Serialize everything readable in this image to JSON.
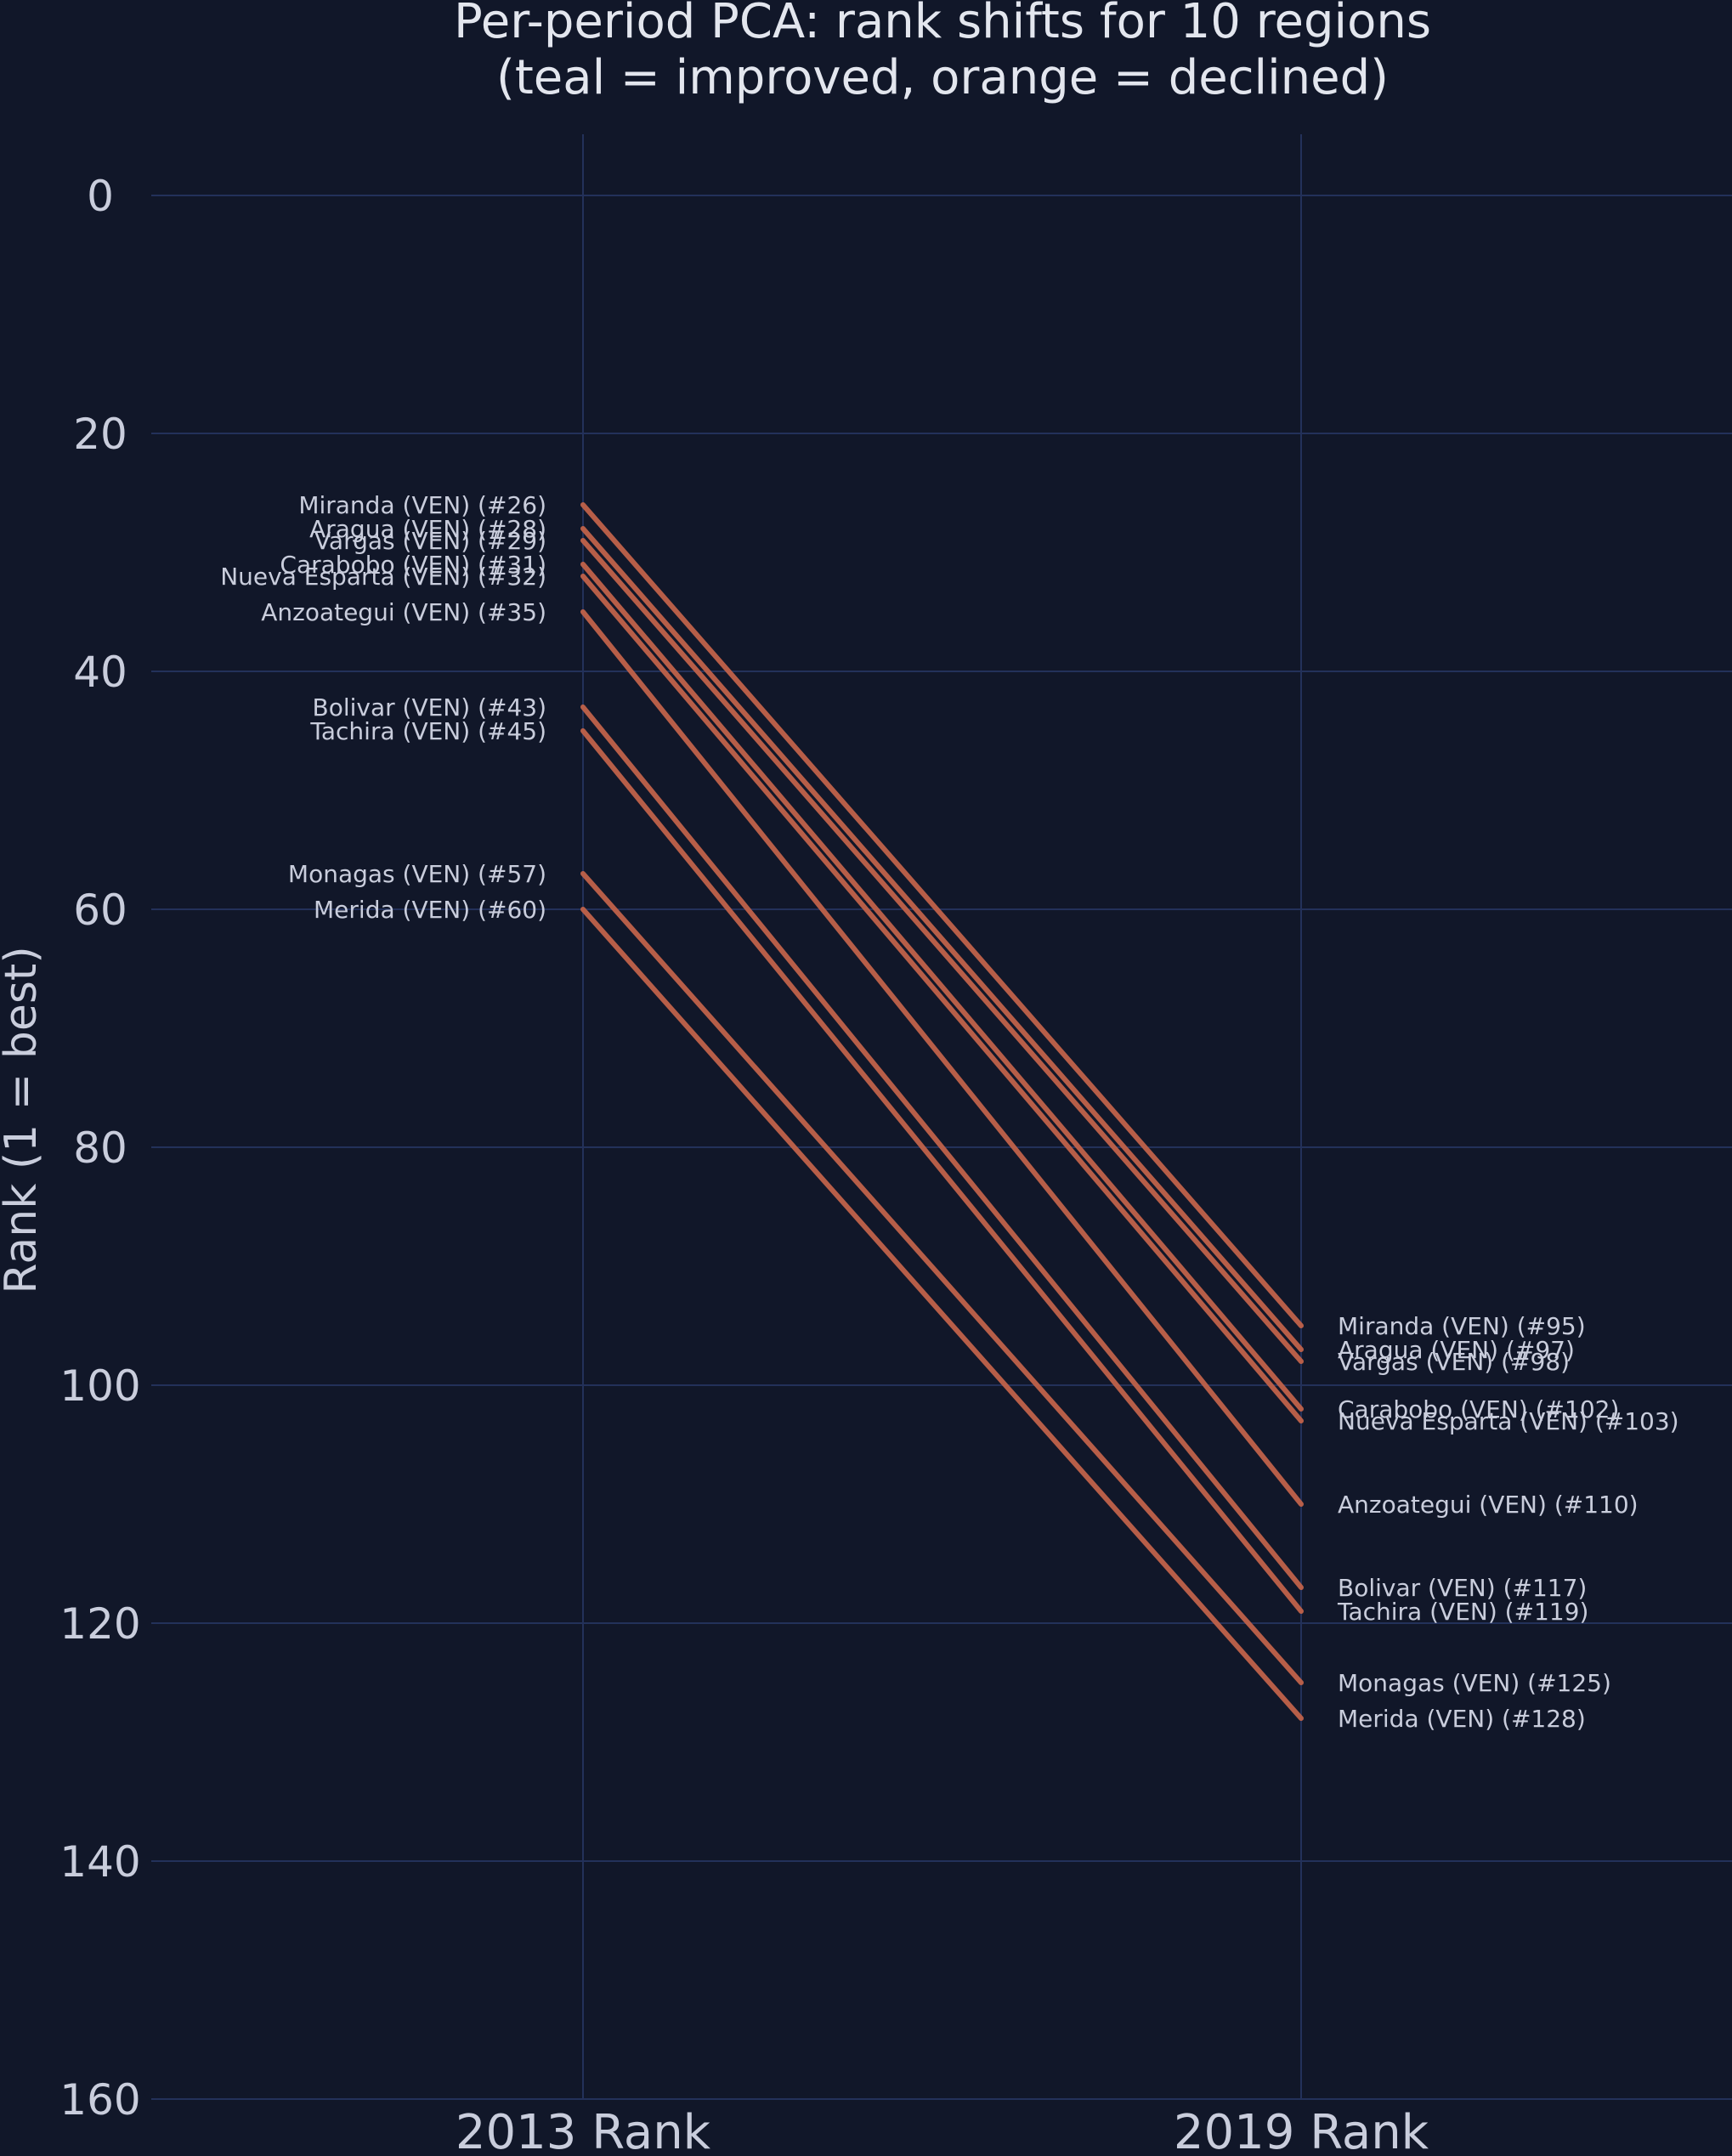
{
  "chart_data": {
    "type": "line",
    "title_lines": [
      "Per-period PCA: rank shifts for 10 regions",
      "(teal = improved, orange = declined)"
    ],
    "xlabel": "",
    "ylabel": "Rank (1 = best)",
    "categories": [
      "2013 Rank",
      "2019 Rank"
    ],
    "ylim": [
      0,
      160
    ],
    "y_inverted": true,
    "yticks": [
      0,
      20,
      40,
      60,
      80,
      100,
      120,
      140,
      160
    ],
    "grid": true,
    "colors": {
      "background": "#111729",
      "grid": "#23315a",
      "improved": "#2bb3a3",
      "declined": "#c0624a",
      "text": "#c9cddc",
      "title": "#e3e6ee"
    },
    "series": [
      {
        "name": "Miranda (VEN)",
        "values": [
          26,
          95
        ],
        "labels": [
          "Miranda (VEN) (#26)",
          "Miranda (VEN) (#95)"
        ]
      },
      {
        "name": "Aragua (VEN)",
        "values": [
          28,
          97
        ],
        "labels": [
          "Aragua (VEN) (#28)",
          "Aragua (VEN) (#97)"
        ]
      },
      {
        "name": "Vargas (VEN)",
        "values": [
          29,
          98
        ],
        "labels": [
          "Vargas (VEN) (#29)",
          "Vargas (VEN) (#98)"
        ]
      },
      {
        "name": "Carabobo (VEN)",
        "values": [
          31,
          102
        ],
        "labels": [
          "Carabobo (VEN) (#31)",
          "Carabobo (VEN) (#102)"
        ]
      },
      {
        "name": "Nueva Esparta (VEN)",
        "values": [
          32,
          103
        ],
        "labels": [
          "Nueva Esparta (VEN) (#32)",
          "Nueva Esparta (VEN) (#103)"
        ]
      },
      {
        "name": "Anzoategui (VEN)",
        "values": [
          35,
          110
        ],
        "labels": [
          "Anzoategui (VEN) (#35)",
          "Anzoategui (VEN) (#110)"
        ]
      },
      {
        "name": "Bolivar (VEN)",
        "values": [
          43,
          117
        ],
        "labels": [
          "Bolivar (VEN) (#43)",
          "Bolivar (VEN) (#117)"
        ]
      },
      {
        "name": "Tachira (VEN)",
        "values": [
          45,
          119
        ],
        "labels": [
          "Tachira (VEN) (#45)",
          "Tachira (VEN) (#119)"
        ]
      },
      {
        "name": "Monagas (VEN)",
        "values": [
          57,
          125
        ],
        "labels": [
          "Monagas (VEN) (#57)",
          "Monagas (VEN) (#125)"
        ]
      },
      {
        "name": "Merida (VEN)",
        "values": [
          60,
          128
        ],
        "labels": [
          "Merida (VEN) (#60)",
          "Merida (VEN) (#128)"
        ]
      }
    ]
  }
}
